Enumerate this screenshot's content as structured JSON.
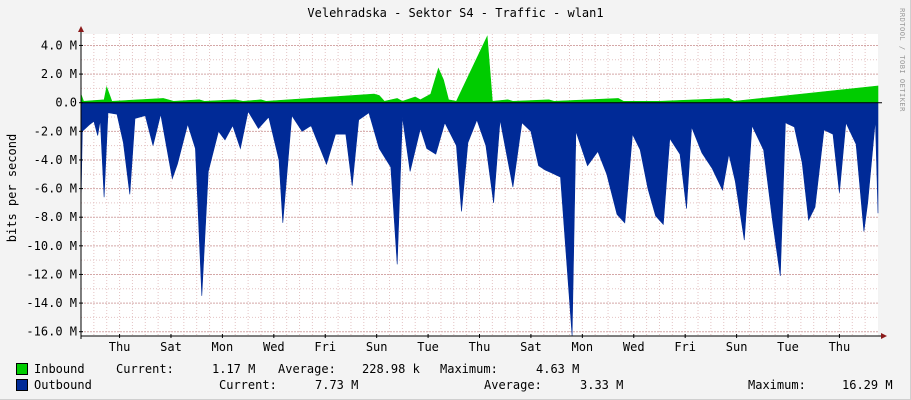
{
  "title": "Velehradska - Sektor S4 - Traffic - wlan1",
  "watermark": "RRDTOOL / TOBI OETIKER",
  "colors": {
    "inbound": "#00cc00",
    "outbound": "#002a97",
    "grid_minor": "#e4c3c3",
    "grid_major": "#d4a7a7",
    "axis_arrow": "#8b1a1a"
  },
  "legend": {
    "inbound": {
      "label": "Inbound",
      "current_label": "Current:",
      "current": "1.17 M",
      "average_label": "Average:",
      "average": "228.98 k",
      "maximum_label": "Maximum:",
      "maximum": "4.63 M"
    },
    "outbound": {
      "label": "Outbound",
      "current_label": "Current:",
      "current": "7.73 M",
      "average_label": "Average:",
      "average": "3.33 M",
      "maximum_label": "Maximum:",
      "maximum": "16.29 M"
    }
  },
  "chart_data": {
    "type": "area",
    "title": "Velehradska - Sektor S4 - Traffic - wlan1",
    "ylabel": "bits per second",
    "ylim": [
      -16.3,
      4.8
    ],
    "y_unit": "M",
    "yticks": [
      4,
      2,
      0,
      -2,
      -4,
      -6,
      -8,
      -10,
      -12,
      -14,
      -16
    ],
    "ytick_labels": [
      "4.0 M",
      "2.0 M",
      "0.0",
      "-2.0 M",
      "-4.0 M",
      "-6.0 M",
      "-8.0 M",
      "-10.0 M",
      "-12.0 M",
      "-14.0 M",
      "-16.0 M"
    ],
    "xtick_labels": [
      "Thu",
      "Sat",
      "Mon",
      "Wed",
      "Fri",
      "Sun",
      "Tue",
      "Thu",
      "Sat",
      "Mon",
      "Wed",
      "Fri",
      "Sun",
      "Tue",
      "Thu"
    ],
    "x_ticks_days": [
      1.5,
      3.5,
      5.5,
      7.5,
      9.5,
      11.5,
      13.5,
      15.5,
      17.5,
      19.5,
      21.5,
      23.5,
      25.5,
      27.5,
      29.5
    ],
    "x_span_days": 31,
    "grid": true,
    "legend_position": "bottom",
    "series": [
      {
        "name": "Inbound",
        "sign": 1,
        "points": [
          [
            0,
            0.6
          ],
          [
            0.1,
            0.1
          ],
          [
            0.9,
            0.2
          ],
          [
            1.0,
            1.1
          ],
          [
            1.2,
            0.1
          ],
          [
            3.2,
            0.3
          ],
          [
            3.6,
            0.1
          ],
          [
            4.6,
            0.2
          ],
          [
            4.8,
            0.1
          ],
          [
            6.0,
            0.2
          ],
          [
            6.3,
            0.1
          ],
          [
            7.0,
            0.2
          ],
          [
            7.2,
            0.1
          ],
          [
            11.4,
            0.6
          ],
          [
            11.6,
            0.5
          ],
          [
            11.8,
            0.1
          ],
          [
            12.3,
            0.3
          ],
          [
            12.5,
            0.1
          ],
          [
            13.0,
            0.4
          ],
          [
            13.2,
            0.2
          ],
          [
            13.6,
            0.6
          ],
          [
            13.9,
            2.4
          ],
          [
            14.1,
            1.6
          ],
          [
            14.3,
            0.2
          ],
          [
            14.6,
            0.1
          ],
          [
            15.8,
            4.63
          ],
          [
            16.0,
            0.1
          ],
          [
            16.6,
            0.2
          ],
          [
            16.8,
            0.1
          ],
          [
            18.2,
            0.2
          ],
          [
            18.4,
            0.1
          ],
          [
            20.9,
            0.3
          ],
          [
            21.1,
            0.1
          ],
          [
            22.5,
            0.1
          ],
          [
            25.2,
            0.3
          ],
          [
            25.4,
            0.1
          ],
          [
            31.0,
            1.17
          ]
        ]
      },
      {
        "name": "Outbound",
        "sign": -1,
        "points": [
          [
            0,
            -7.2
          ],
          [
            0.05,
            -2.0
          ],
          [
            0.35,
            -1.5
          ],
          [
            0.5,
            -1.3
          ],
          [
            0.65,
            -2.3
          ],
          [
            0.75,
            -1.2
          ],
          [
            0.9,
            -6.6
          ],
          [
            1.05,
            -0.7
          ],
          [
            1.4,
            -0.8
          ],
          [
            1.65,
            -2.8
          ],
          [
            1.9,
            -6.4
          ],
          [
            2.1,
            -1.1
          ],
          [
            2.5,
            -0.9
          ],
          [
            2.8,
            -3.0
          ],
          [
            3.1,
            -0.8
          ],
          [
            3.55,
            -5.3
          ],
          [
            3.75,
            -4.3
          ],
          [
            4.15,
            -1.5
          ],
          [
            4.45,
            -3.2
          ],
          [
            4.7,
            -13.5
          ],
          [
            4.95,
            -4.8
          ],
          [
            5.35,
            -2.0
          ],
          [
            5.6,
            -2.6
          ],
          [
            5.9,
            -1.6
          ],
          [
            6.2,
            -3.2
          ],
          [
            6.5,
            -0.6
          ],
          [
            6.9,
            -1.8
          ],
          [
            7.3,
            -1.0
          ],
          [
            7.7,
            -4.0
          ],
          [
            7.85,
            -8.4
          ],
          [
            8.2,
            -0.9
          ],
          [
            8.6,
            -2.0
          ],
          [
            8.95,
            -1.6
          ],
          [
            9.15,
            -2.5
          ],
          [
            9.55,
            -4.3
          ],
          [
            9.9,
            -2.2
          ],
          [
            10.3,
            -2.2
          ],
          [
            10.55,
            -5.8
          ],
          [
            10.8,
            -1.2
          ],
          [
            11.2,
            -0.7
          ],
          [
            11.6,
            -3.2
          ],
          [
            12.05,
            -4.5
          ],
          [
            12.3,
            -11.3
          ],
          [
            12.5,
            -1.0
          ],
          [
            12.8,
            -4.8
          ],
          [
            13.2,
            -1.8
          ],
          [
            13.45,
            -3.2
          ],
          [
            13.8,
            -3.6
          ],
          [
            14.15,
            -1.4
          ],
          [
            14.6,
            -3.0
          ],
          [
            14.8,
            -7.6
          ],
          [
            15.05,
            -2.8
          ],
          [
            15.4,
            -1.2
          ],
          [
            15.75,
            -3.0
          ],
          [
            16.05,
            -7.0
          ],
          [
            16.3,
            -1.2
          ],
          [
            16.8,
            -5.9
          ],
          [
            17.15,
            -1.4
          ],
          [
            17.5,
            -2.0
          ],
          [
            17.8,
            -4.4
          ],
          [
            18.05,
            -4.7
          ],
          [
            18.3,
            -4.9
          ],
          [
            18.65,
            -5.2
          ],
          [
            19.1,
            -16.29
          ],
          [
            19.25,
            -2.0
          ],
          [
            19.7,
            -4.4
          ],
          [
            20.1,
            -3.4
          ],
          [
            20.45,
            -5.0
          ],
          [
            20.85,
            -7.8
          ],
          [
            21.15,
            -8.4
          ],
          [
            21.45,
            -2.2
          ],
          [
            21.75,
            -3.3
          ],
          [
            22.05,
            -6.0
          ],
          [
            22.35,
            -7.9
          ],
          [
            22.65,
            -8.5
          ],
          [
            22.9,
            -2.5
          ],
          [
            23.3,
            -3.6
          ],
          [
            23.55,
            -7.4
          ],
          [
            23.75,
            -1.7
          ],
          [
            24.15,
            -3.5
          ],
          [
            24.55,
            -4.6
          ],
          [
            24.95,
            -6.1
          ],
          [
            25.2,
            -3.6
          ],
          [
            25.45,
            -5.5
          ],
          [
            25.8,
            -9.6
          ],
          [
            26.1,
            -1.6
          ],
          [
            26.55,
            -3.3
          ],
          [
            26.9,
            -8.3
          ],
          [
            27.2,
            -12.1
          ],
          [
            27.4,
            -1.4
          ],
          [
            27.75,
            -1.7
          ],
          [
            28.05,
            -4.2
          ],
          [
            28.3,
            -8.2
          ],
          [
            28.55,
            -7.3
          ],
          [
            28.9,
            -1.9
          ],
          [
            29.25,
            -2.2
          ],
          [
            29.5,
            -6.3
          ],
          [
            29.75,
            -1.4
          ],
          [
            30.15,
            -2.9
          ],
          [
            30.45,
            -9.0
          ],
          [
            30.6,
            -7.0
          ],
          [
            30.9,
            -1.2
          ],
          [
            31.0,
            -7.73
          ]
        ]
      }
    ]
  }
}
